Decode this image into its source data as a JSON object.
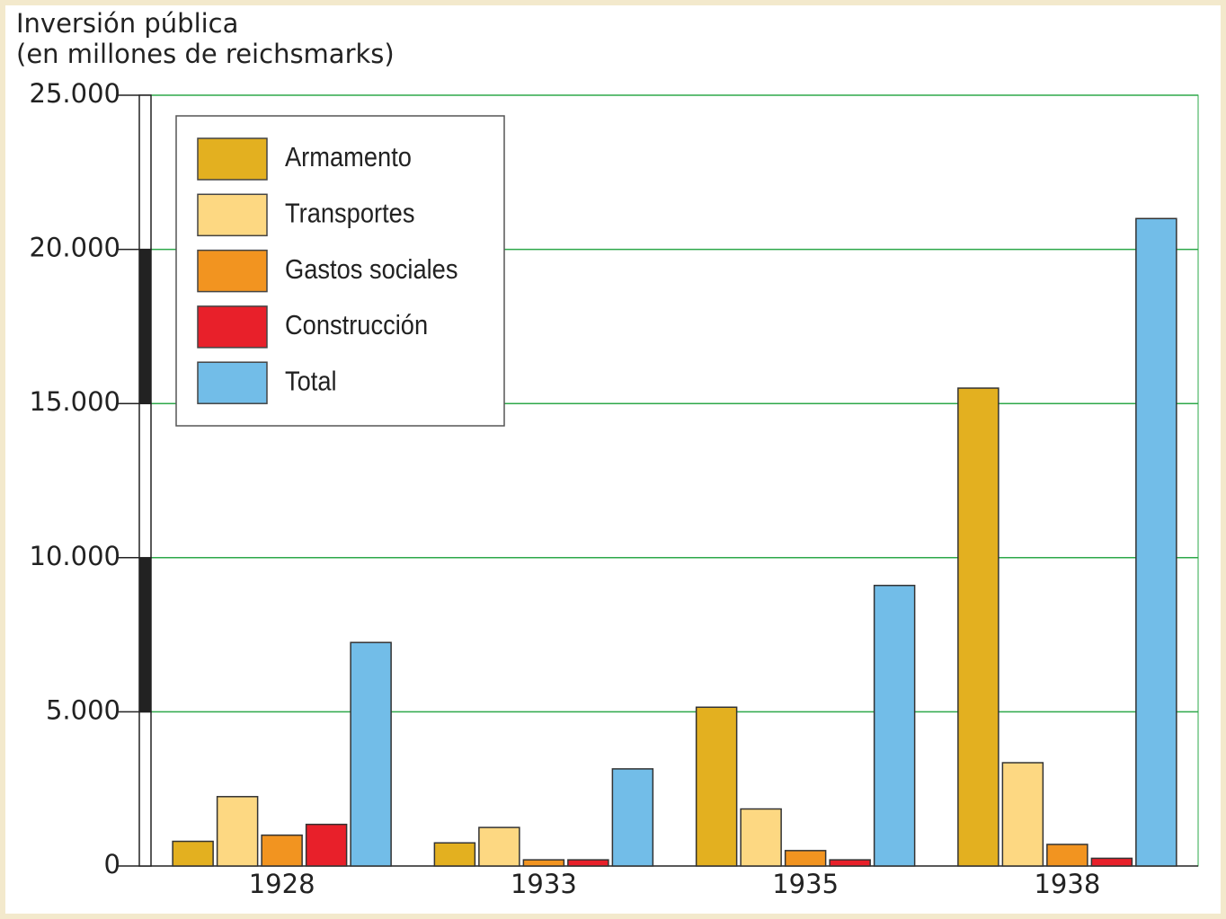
{
  "chart_data": {
    "type": "bar",
    "ylabel": [
      "Inversión pública",
      "(en millones de reichsmarks)"
    ],
    "categories": [
      "1928",
      "1933",
      "1935",
      "1938"
    ],
    "series": [
      {
        "name": "Armamento",
        "color": "#e3b020",
        "values": [
          800,
          750,
          5150,
          15500
        ]
      },
      {
        "name": "Transportes",
        "color": "#fdd882",
        "values": [
          2250,
          1250,
          1850,
          3350
        ]
      },
      {
        "name": "Gastos sociales",
        "color": "#f29420",
        "values": [
          1000,
          200,
          500,
          700
        ]
      },
      {
        "name": "Construcción",
        "color": "#e8202a",
        "values": [
          1350,
          200,
          200,
          250
        ]
      },
      {
        "name": "Total",
        "color": "#72bde8",
        "values": [
          7250,
          3150,
          9100,
          21000
        ]
      }
    ],
    "ylim": [
      0,
      25000
    ],
    "yticks": [
      0,
      {
        "value": 5000,
        "label": "5.000"
      },
      {
        "value": 10000,
        "label": "10.000"
      },
      {
        "value": 15000,
        "label": "15.000"
      },
      {
        "value": 20000,
        "label": "20.000"
      },
      {
        "value": 25000,
        "label": "25.000"
      }
    ],
    "grid": true,
    "grid_color": "#2ea84a",
    "legend": "upper left"
  }
}
